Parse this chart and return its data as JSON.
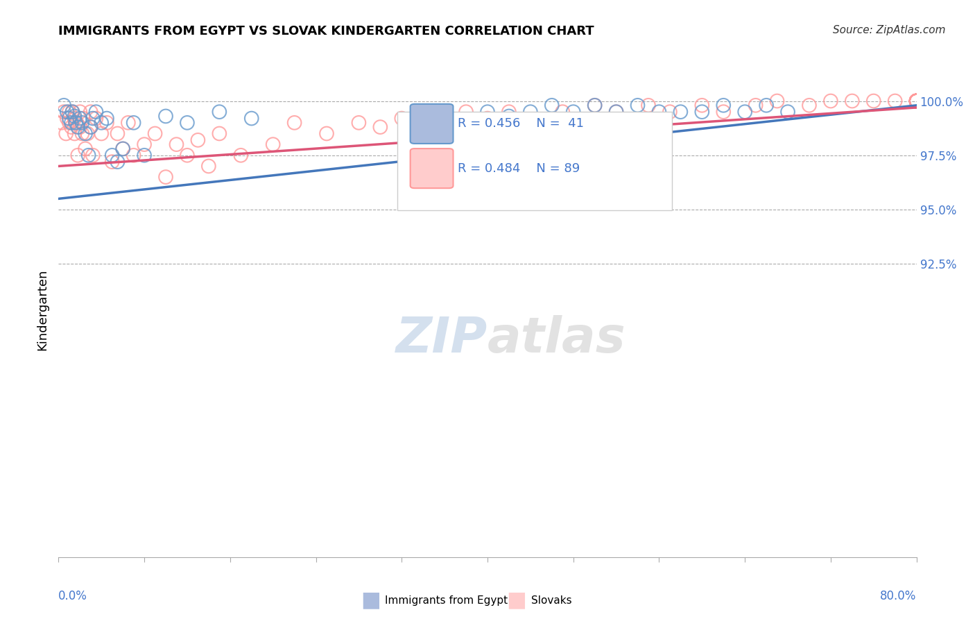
{
  "title": "IMMIGRANTS FROM EGYPT VS SLOVAK KINDERGARTEN CORRELATION CHART",
  "source": "Source: ZipAtlas.com",
  "ylabel": "Kindergarten",
  "xlim_min": 0.0,
  "xlim_max": 80.0,
  "ylim_min": 79.0,
  "ylim_max": 101.8,
  "legend_R1": "R = 0.456",
  "legend_N1": "N =  41",
  "legend_R2": "R = 0.484",
  "legend_N2": "N = 89",
  "blue_color": "#6699cc",
  "blue_fill": "#aabbdd",
  "blue_line_color": "#4477bb",
  "pink_color": "#ff9999",
  "pink_fill": "#ffcccc",
  "pink_line_color": "#dd5577",
  "grid_color": "#aaaaaa",
  "axis_label_color": "#4477cc",
  "blue_line_x": [
    0,
    80
  ],
  "blue_line_y": [
    95.5,
    99.8
  ],
  "pink_line_x": [
    0,
    80
  ],
  "pink_line_y": [
    97.0,
    99.7
  ],
  "blue_x": [
    0.5,
    0.8,
    1.0,
    1.2,
    1.3,
    1.5,
    1.6,
    1.8,
    2.0,
    2.2,
    2.5,
    2.8,
    3.0,
    3.2,
    3.5,
    4.0,
    4.5,
    5.0,
    5.5,
    6.0,
    7.0,
    8.0,
    10.0,
    12.0,
    15.0,
    18.0,
    40.0,
    42.0,
    44.0,
    46.0,
    48.0,
    50.0,
    52.0,
    54.0,
    56.0,
    58.0,
    60.0,
    62.0,
    64.0,
    66.0,
    68.0
  ],
  "blue_y": [
    99.8,
    99.5,
    99.2,
    99.0,
    99.5,
    99.3,
    99.0,
    98.8,
    99.2,
    99.0,
    98.5,
    97.5,
    98.8,
    99.2,
    99.5,
    99.0,
    99.2,
    97.5,
    97.2,
    97.8,
    99.0,
    97.5,
    99.3,
    99.0,
    99.5,
    99.2,
    99.5,
    99.3,
    99.5,
    99.8,
    99.5,
    99.8,
    99.5,
    99.8,
    99.5,
    99.5,
    99.5,
    99.8,
    99.5,
    99.8,
    99.5
  ],
  "pink_x": [
    0.3,
    0.5,
    0.7,
    0.8,
    1.0,
    1.0,
    1.2,
    1.3,
    1.5,
    1.5,
    1.7,
    1.8,
    2.0,
    2.0,
    2.2,
    2.3,
    2.5,
    2.7,
    3.0,
    3.0,
    3.2,
    3.5,
    4.0,
    4.5,
    5.0,
    5.5,
    6.0,
    6.5,
    7.0,
    8.0,
    9.0,
    10.0,
    11.0,
    12.0,
    13.0,
    14.0,
    15.0,
    17.0,
    20.0,
    22.0,
    25.0,
    28.0,
    30.0,
    32.0,
    35.0,
    38.0,
    40.0,
    42.0,
    45.0,
    47.0,
    50.0,
    52.0,
    55.0,
    57.0,
    60.0,
    62.0,
    65.0,
    67.0,
    70.0,
    72.0,
    74.0,
    76.0,
    78.0,
    80.0,
    80.0,
    80.0,
    80.0,
    80.0,
    80.0,
    80.0,
    80.0,
    80.0,
    80.0,
    80.0,
    80.0,
    80.0,
    80.0,
    80.0,
    80.0,
    80.0,
    80.0,
    80.0,
    80.0,
    80.0,
    80.0,
    80.0,
    80.0,
    80.0,
    80.0
  ],
  "pink_y": [
    99.0,
    99.5,
    98.5,
    99.2,
    99.5,
    99.0,
    98.8,
    99.5,
    99.2,
    98.5,
    99.0,
    97.5,
    98.8,
    99.5,
    98.5,
    99.2,
    97.8,
    98.5,
    98.8,
    99.5,
    97.5,
    99.2,
    98.5,
    99.0,
    97.2,
    98.5,
    97.8,
    99.0,
    97.5,
    98.0,
    98.5,
    96.5,
    98.0,
    97.5,
    98.2,
    97.0,
    98.5,
    97.5,
    98.0,
    99.0,
    98.5,
    99.0,
    98.8,
    99.2,
    99.0,
    99.5,
    99.2,
    99.5,
    99.0,
    99.5,
    99.8,
    99.5,
    99.8,
    99.5,
    99.8,
    99.5,
    99.8,
    100.0,
    99.8,
    100.0,
    100.0,
    100.0,
    100.0,
    100.0,
    100.0,
    100.0,
    100.0,
    100.0,
    100.0,
    100.0,
    100.0,
    100.0,
    100.0,
    100.0,
    100.0,
    100.0,
    100.0,
    100.0,
    100.0,
    100.0,
    100.0,
    100.0,
    100.0,
    100.0,
    100.0,
    100.0,
    100.0,
    100.0,
    100.0
  ],
  "ytick_vals": [
    100.0,
    97.5,
    95.0,
    92.5
  ],
  "ytick_labels": [
    "100.0%",
    "97.5%",
    "95.0%",
    "92.5%"
  ],
  "watermark_zip": "ZIP",
  "watermark_atlas": "atlas"
}
